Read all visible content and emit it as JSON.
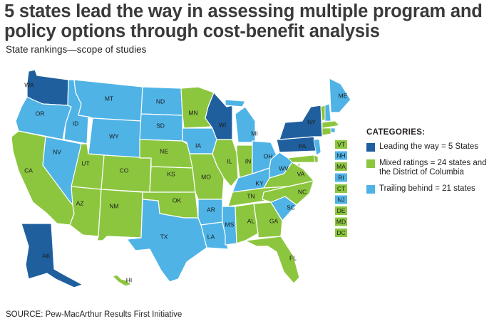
{
  "title": "5 states lead the way in assessing multiple program and policy options through cost-benefit analysis",
  "subtitle": "State rankings—scope of studies",
  "source": "SOURCE: Pew-MacArthur Results First Initiative",
  "colors": {
    "leading": "#1f5f9e",
    "mixed": "#8cc63f",
    "trailing": "#4fb3e6"
  },
  "legend": {
    "title": "CATEGORIES:",
    "items": [
      {
        "category": "leading",
        "label": "Leading the way = 5 States"
      },
      {
        "category": "mixed",
        "label": "Mixed ratings = 24 states and the District of Columbia"
      },
      {
        "category": "trailing",
        "label": "Trailing behind = 21 states"
      }
    ]
  },
  "states": {
    "WA": "leading",
    "OR": "trailing",
    "CA": "mixed",
    "NV": "trailing",
    "ID": "trailing",
    "MT": "trailing",
    "WY": "trailing",
    "UT": "mixed",
    "AZ": "mixed",
    "CO": "mixed",
    "NM": "mixed",
    "ND": "trailing",
    "SD": "trailing",
    "NE": "mixed",
    "KS": "mixed",
    "OK": "mixed",
    "TX": "trailing",
    "MN": "mixed",
    "IA": "trailing",
    "MO": "mixed",
    "AR": "trailing",
    "LA": "trailing",
    "WI": "leading",
    "IL": "mixed",
    "MS": "trailing",
    "MI": "trailing",
    "IN": "mixed",
    "KY": "trailing",
    "TN": "mixed",
    "AL": "mixed",
    "OH": "trailing",
    "GA": "mixed",
    "FL": "mixed",
    "SC": "trailing",
    "NC": "mixed",
    "VA": "mixed",
    "WV": "trailing",
    "PA": "leading",
    "NY": "leading",
    "ME": "trailing",
    "AK": "leading",
    "HI": "mixed"
  },
  "small_states": [
    {
      "code": "VT",
      "category": "mixed"
    },
    {
      "code": "NH",
      "category": "trailing"
    },
    {
      "code": "MA",
      "category": "mixed"
    },
    {
      "code": "RI",
      "category": "trailing"
    },
    {
      "code": "CT",
      "category": "mixed"
    },
    {
      "code": "NJ",
      "category": "trailing"
    },
    {
      "code": "DE",
      "category": "mixed"
    },
    {
      "code": "MD",
      "category": "mixed"
    },
    {
      "code": "DC",
      "category": "mixed"
    }
  ]
}
